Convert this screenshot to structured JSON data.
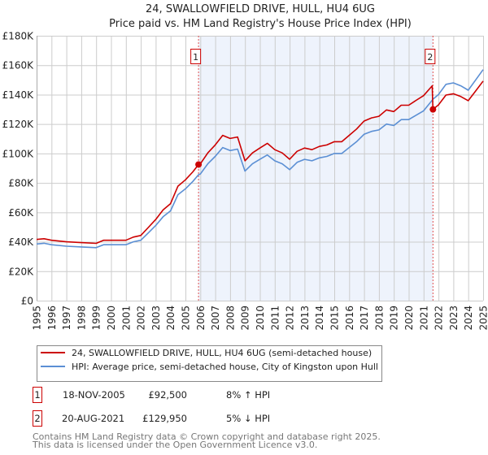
{
  "chart_data": {
    "type": "line",
    "title": "24, SWALLOWFIELD DRIVE, HULL, HU4 6UG",
    "subtitle": "Price paid vs. HM Land Registry's House Price Index (HPI)",
    "xlim": [
      1995,
      2025
    ],
    "ylim": [
      0,
      180000
    ],
    "grid": true,
    "x_ticks": [
      "1995",
      "1996",
      "1997",
      "1998",
      "1999",
      "2000",
      "2001",
      "2002",
      "2003",
      "2004",
      "2005",
      "2006",
      "2007",
      "2008",
      "2009",
      "2010",
      "2011",
      "2012",
      "2013",
      "2014",
      "2015",
      "2016",
      "2017",
      "2018",
      "2019",
      "2020",
      "2021",
      "2022",
      "2023",
      "2024",
      "2025"
    ],
    "y_ticks": [
      {
        "value": 0,
        "label": "£0"
      },
      {
        "value": 20000,
        "label": "£20K"
      },
      {
        "value": 40000,
        "label": "£40K"
      },
      {
        "value": 60000,
        "label": "£60K"
      },
      {
        "value": 80000,
        "label": "£80K"
      },
      {
        "value": 100000,
        "label": "£100K"
      },
      {
        "value": 120000,
        "label": "£120K"
      },
      {
        "value": 140000,
        "label": "£140K"
      },
      {
        "value": 160000,
        "label": "£160K"
      },
      {
        "value": 180000,
        "label": "£180K"
      }
    ],
    "series": [
      {
        "name": "24, SWALLOWFIELD DRIVE, HULL, HU4 6UG (semi-detached house)",
        "color": "#cc0000",
        "x": [
          1995,
          1995.5,
          1996,
          1997,
          1998,
          1999,
          1999.5,
          2000,
          2001,
          2001.5,
          2002,
          2002.5,
          2003,
          2003.5,
          2004,
          2004.5,
          2005,
          2005.5,
          2005.88,
          2006,
          2006.5,
          2007,
          2007.5,
          2008,
          2008.5,
          2009,
          2009.5,
          2010,
          2010.5,
          2011,
          2011.5,
          2012,
          2012.5,
          2013,
          2013.5,
          2014,
          2014.5,
          2015,
          2015.5,
          2016,
          2016.5,
          2017,
          2017.5,
          2018,
          2018.5,
          2019,
          2019.5,
          2020,
          2020.5,
          2021,
          2021.58,
          2021.63,
          2022,
          2022.5,
          2023,
          2023.5,
          2024,
          2024.5,
          2025
        ],
        "y": [
          41600,
          42100,
          41000,
          40000,
          39400,
          38900,
          41000,
          41000,
          41000,
          43200,
          44300,
          49700,
          55100,
          61600,
          65900,
          77800,
          82100,
          87500,
          92500,
          92900,
          100400,
          105800,
          112300,
          110200,
          111200,
          95000,
          100400,
          103700,
          106900,
          102600,
          100400,
          96100,
          101500,
          103700,
          102600,
          104800,
          105800,
          108000,
          108000,
          112300,
          116600,
          122000,
          124200,
          125300,
          129600,
          128500,
          132800,
          132800,
          136100,
          139300,
          146000,
          129950,
          133000,
          139700,
          140600,
          138700,
          135900,
          142500,
          149200
        ]
      },
      {
        "name": "HPI: Average price, semi-detached house, City of Kingston upon Hull",
        "color": "#5b8fd4",
        "x": [
          1995,
          1995.5,
          1996,
          1997,
          1998,
          1999,
          1999.5,
          2000,
          2001,
          2001.5,
          2002,
          2002.5,
          2003,
          2003.5,
          2004,
          2004.5,
          2005,
          2005.5,
          2005.88,
          2006,
          2006.5,
          2007,
          2007.5,
          2008,
          2008.5,
          2009,
          2009.5,
          2010,
          2010.5,
          2011,
          2011.5,
          2012,
          2012.5,
          2013,
          2013.5,
          2014,
          2014.5,
          2015,
          2015.5,
          2016,
          2016.5,
          2017,
          2017.5,
          2018,
          2018.5,
          2019,
          2019.5,
          2020,
          2020.5,
          2021,
          2021.63,
          2022,
          2022.5,
          2023,
          2023.5,
          2024,
          2024.5,
          2025
        ],
        "y": [
          38500,
          39000,
          38000,
          37000,
          36500,
          36000,
          38000,
          38000,
          38000,
          40000,
          41000,
          46000,
          51000,
          57000,
          61000,
          72000,
          76000,
          81000,
          85600,
          86000,
          93000,
          98000,
          104000,
          102000,
          103000,
          88000,
          93000,
          96000,
          99000,
          95000,
          93000,
          89000,
          94000,
          96000,
          95000,
          97000,
          98000,
          100000,
          100000,
          104000,
          108000,
          113000,
          115000,
          116000,
          120000,
          119000,
          123000,
          123000,
          126000,
          129000,
          136800,
          140000,
          147000,
          148000,
          146000,
          143000,
          150000,
          157000
        ]
      }
    ],
    "sales": [
      {
        "id": "1",
        "x": 2005.88,
        "price": 92500,
        "date": "18-NOV-2005",
        "price_label": "£92,500",
        "hpi_diff": "8% ↑ HPI"
      },
      {
        "id": "2",
        "x": 2021.63,
        "price": 129950,
        "date": "20-AUG-2021",
        "price_label": "£129,950",
        "hpi_diff": "5% ↓ HPI"
      }
    ],
    "shaded_range": [
      2005.88,
      2021.63
    ],
    "legend_placement": "below"
  },
  "footer": {
    "line1": "Contains HM Land Registry data © Crown copyright and database right 2025.",
    "line2": "This data is licensed under the Open Government Licence v3.0."
  }
}
